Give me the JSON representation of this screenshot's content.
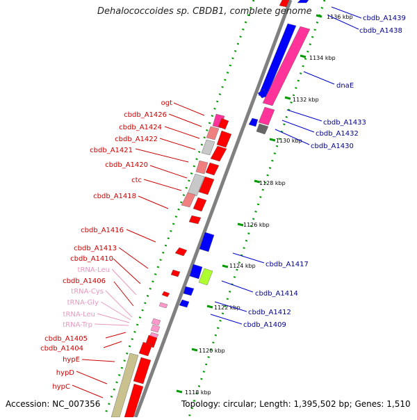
{
  "title": "Dehalococcoides sp. CBDB1, complete genome",
  "footer": {
    "accession": "Accession: NC_007356",
    "topology": "Topology: circular; Length: 1,395,502 bp; Genes: 1,510"
  },
  "ticks": [
    "1136 kbp",
    "1134 kbp",
    "1132 kbp",
    "1130 kbp",
    "1128 kbp",
    "1126 kbp",
    "1124 kbp",
    "1122 kbp",
    "1120 kbp",
    "1118 kbp"
  ],
  "left_labels": [
    "ogt",
    "cbdb_A1426",
    "cbdb_A1424",
    "cbdb_A1422",
    "cbdb_A1421",
    "cbdb_A1420",
    "ctc",
    "cbdb_A1418",
    "cbdb_A1416",
    "cbdb_A1413",
    "cbdb_A1410",
    "tRNA-Leu",
    "cbdb_A1406",
    "tRNA-Cys",
    "tRNA-Gly",
    "tRNA-Leu",
    "tRNA-Trp",
    "cbdb_A1405",
    "cbdb_A1404",
    "hypE",
    "hypD",
    "hypC"
  ],
  "right_labels": [
    "cbdb_A1439",
    "cbdb_A1438",
    "dnaE",
    "cbdb_A1433",
    "cbdb_A1432",
    "cbdb_A1430",
    "cbdb_A1417",
    "cbdb_A1414",
    "cbdb_A1412",
    "cbdb_A1409"
  ],
  "colors": {
    "forward_gene": "#ff0000",
    "reverse_gene": "#0000ff",
    "forward_label": "#cc0000",
    "trna_label": "#e897c0",
    "reverse_label": "#00008b",
    "backbone": "#808080",
    "tick_marks": "#009900",
    "pink_feature": "#ff3399",
    "salmon_feature": "#f08080",
    "light_gray_feature": "#c8c8c8",
    "olive_feature": "#c9c28e",
    "yellow_green_feature": "#adff2f"
  }
}
